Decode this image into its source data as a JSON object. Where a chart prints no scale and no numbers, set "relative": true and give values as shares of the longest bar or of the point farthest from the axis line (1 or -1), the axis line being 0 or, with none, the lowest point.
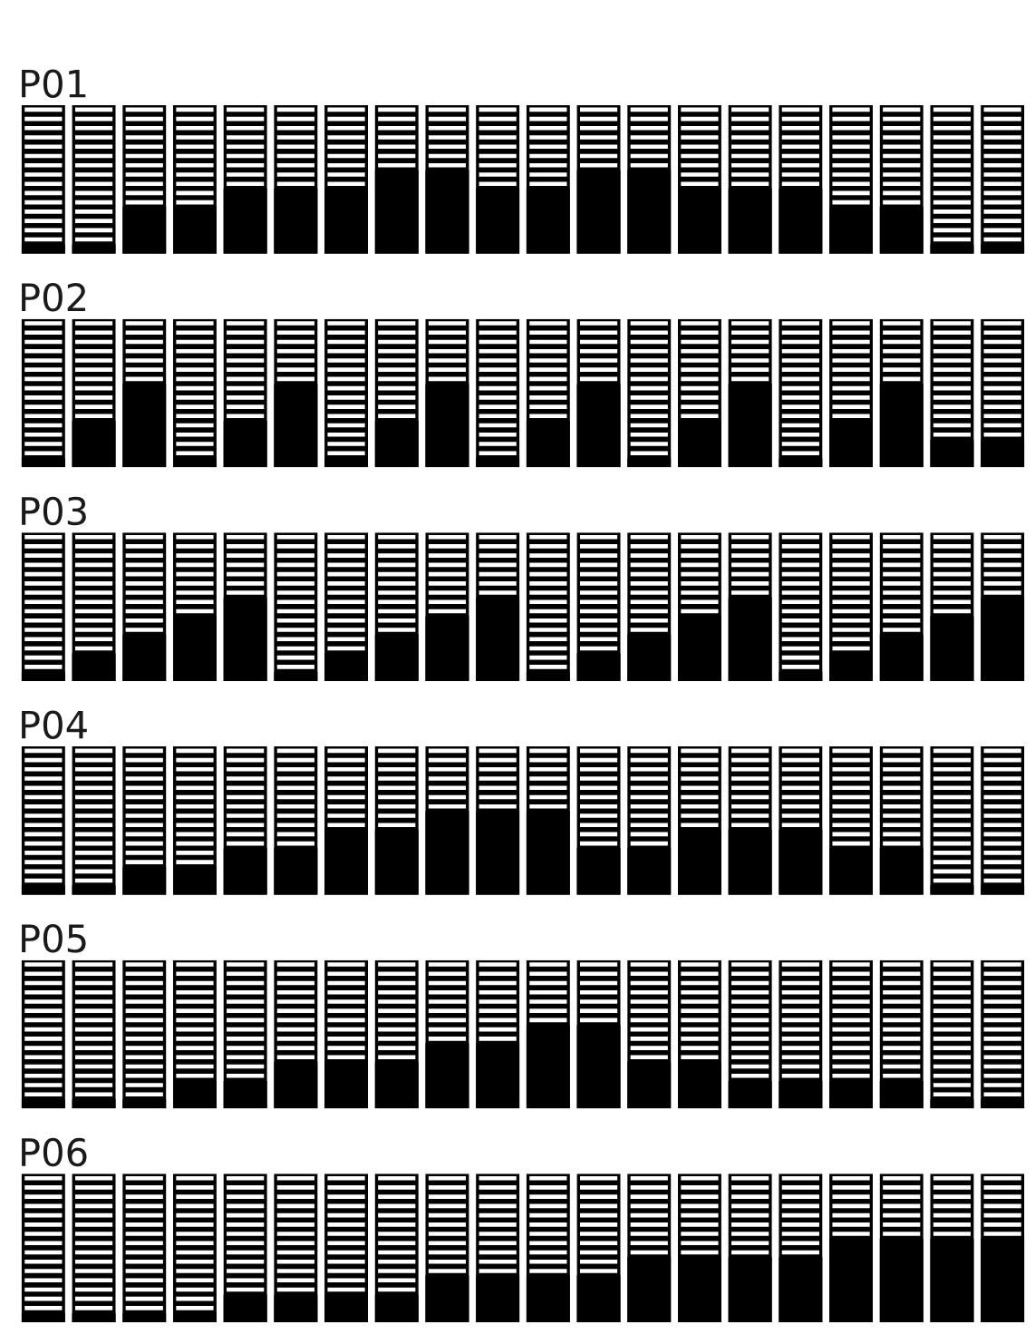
{
  "chart_data": [
    {
      "type": "bar",
      "title": "P01",
      "relative": true,
      "color": "#000000",
      "categories": [
        null,
        null,
        null,
        null,
        null,
        null,
        null,
        null,
        null,
        null,
        null,
        null,
        null,
        null,
        null,
        null,
        null,
        null,
        null,
        null
      ],
      "values": [
        0.11,
        0.11,
        0.56,
        0.56,
        0.78,
        0.78,
        0.78,
        1,
        1,
        0.78,
        0.78,
        1,
        1,
        0.78,
        0.78,
        0.78,
        0.56,
        0.56,
        0.11,
        0.11
      ]
    },
    {
      "type": "bar",
      "title": "P02",
      "relative": true,
      "color": "#000000",
      "categories": [
        null,
        null,
        null,
        null,
        null,
        null,
        null,
        null,
        null,
        null,
        null,
        null,
        null,
        null,
        null,
        null,
        null,
        null,
        null,
        null
      ],
      "values": [
        0.11,
        0.56,
        1,
        0.11,
        0.56,
        1,
        0.11,
        0.56,
        1,
        0.11,
        0.56,
        1,
        0.11,
        0.56,
        1,
        0.11,
        0.56,
        1,
        0.33,
        0.33
      ]
    },
    {
      "type": "bar",
      "title": "P03",
      "relative": true,
      "color": "#000000",
      "categories": [
        null,
        null,
        null,
        null,
        null,
        null,
        null,
        null,
        null,
        null,
        null,
        null,
        null,
        null,
        null,
        null,
        null,
        null,
        null,
        null
      ],
      "values": [
        0.11,
        0.33,
        0.56,
        0.78,
        1,
        0.11,
        0.33,
        0.56,
        0.78,
        1,
        0.11,
        0.33,
        0.56,
        0.78,
        1,
        0.11,
        0.33,
        0.56,
        0.78,
        1
      ]
    },
    {
      "type": "bar",
      "title": "P04",
      "relative": true,
      "color": "#000000",
      "categories": [
        null,
        null,
        null,
        null,
        null,
        null,
        null,
        null,
        null,
        null,
        null,
        null,
        null,
        null,
        null,
        null,
        null,
        null,
        null,
        null
      ],
      "values": [
        0.11,
        0.11,
        0.33,
        0.33,
        0.56,
        0.56,
        0.78,
        0.78,
        1,
        1,
        1,
        0.56,
        0.56,
        0.78,
        0.78,
        0.78,
        0.56,
        0.56,
        0.11,
        0.11
      ]
    },
    {
      "type": "bar",
      "title": "P05",
      "relative": true,
      "color": "#000000",
      "categories": [
        null,
        null,
        null,
        null,
        null,
        null,
        null,
        null,
        null,
        null,
        null,
        null,
        null,
        null,
        null,
        null,
        null,
        null,
        null,
        null
      ],
      "values": [
        0.11,
        0.11,
        0.11,
        0.33,
        0.33,
        0.56,
        0.56,
        0.56,
        0.78,
        0.78,
        1,
        1,
        0.56,
        0.56,
        0.33,
        0.33,
        0.33,
        0.33,
        0.11,
        0.11
      ]
    },
    {
      "type": "bar",
      "title": "P06",
      "relative": true,
      "color": "#000000",
      "categories": [
        null,
        null,
        null,
        null,
        null,
        null,
        null,
        null,
        null,
        null,
        null,
        null,
        null,
        null,
        null,
        null,
        null,
        null,
        null,
        null
      ],
      "values": [
        0.11,
        0.11,
        0.11,
        0.11,
        0.33,
        0.33,
        0.33,
        0.33,
        0.56,
        0.56,
        0.56,
        0.56,
        0.78,
        0.78,
        0.78,
        0.78,
        1,
        1,
        1,
        1
      ]
    }
  ]
}
